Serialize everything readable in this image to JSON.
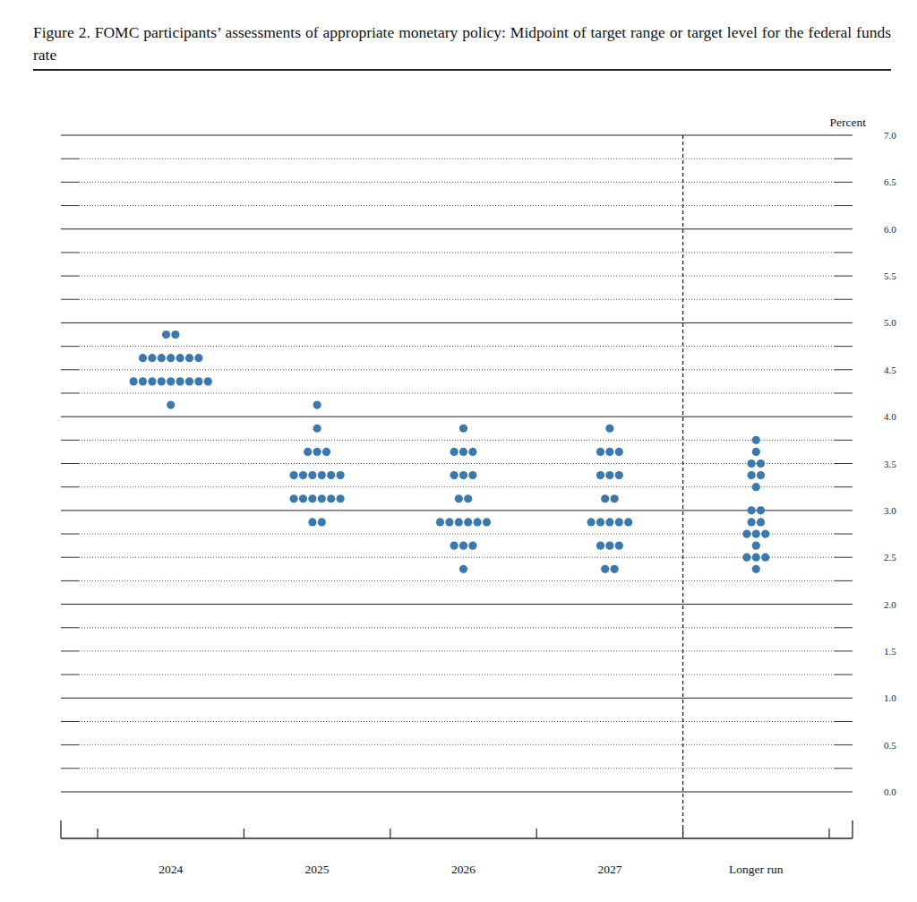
{
  "chart_data": {
    "type": "dot",
    "title": "Figure 2.  FOMC participants’ assessments of appropriate monetary policy: Midpoint of target range or target level for the federal funds rate",
    "y_label": "Percent",
    "categories": [
      "2024",
      "2025",
      "2026",
      "2027",
      "Longer run"
    ],
    "values": [
      [
        4.875,
        4.875,
        4.625,
        4.625,
        4.625,
        4.625,
        4.625,
        4.625,
        4.625,
        4.375,
        4.375,
        4.375,
        4.375,
        4.375,
        4.375,
        4.375,
        4.375,
        4.375,
        4.125
      ],
      [
        4.125,
        3.875,
        3.625,
        3.625,
        3.625,
        3.375,
        3.375,
        3.375,
        3.375,
        3.375,
        3.375,
        3.125,
        3.125,
        3.125,
        3.125,
        3.125,
        3.125,
        2.875,
        2.875
      ],
      [
        3.875,
        3.625,
        3.625,
        3.625,
        3.375,
        3.375,
        3.375,
        3.125,
        3.125,
        2.875,
        2.875,
        2.875,
        2.875,
        2.875,
        2.875,
        2.625,
        2.625,
        2.625,
        2.375
      ],
      [
        3.875,
        3.625,
        3.625,
        3.625,
        3.375,
        3.375,
        3.375,
        3.125,
        3.125,
        2.875,
        2.875,
        2.875,
        2.875,
        2.875,
        2.625,
        2.625,
        2.625,
        2.375,
        2.375
      ],
      [
        3.75,
        3.625,
        3.5,
        3.5,
        3.375,
        3.375,
        3.25,
        3.0,
        3.0,
        2.875,
        2.875,
        2.75,
        2.75,
        2.75,
        2.625,
        2.5,
        2.5,
        2.5,
        2.375
      ]
    ],
    "color": "#3a78b0",
    "ylim": [
      0,
      7
    ],
    "yticks": [
      {
        "value": 0,
        "label": "0.0"
      },
      0.5,
      {
        "value": 1,
        "label": "1.0"
      },
      1.5,
      {
        "value": 2,
        "label": "2.0"
      },
      2.5,
      {
        "value": 3,
        "label": "3.0"
      },
      3.5,
      {
        "value": 4,
        "label": "4.0"
      },
      4.5,
      {
        "value": 5,
        "label": "5.0"
      },
      5.5,
      {
        "value": 6,
        "label": "6.0"
      },
      6.5,
      {
        "value": 7,
        "label": "7.0"
      }
    ],
    "grid": true
  }
}
